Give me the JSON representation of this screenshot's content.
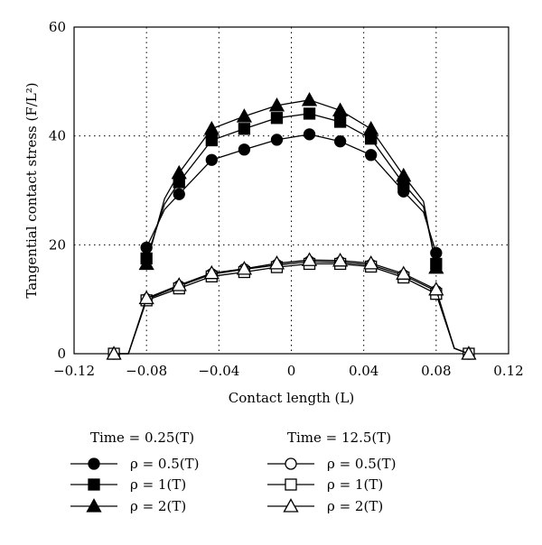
{
  "chart_data": {
    "type": "line",
    "xlabel": "Contact length (L)",
    "ylabel": "Tangential contact stress (F/L²)",
    "xlim": [
      -0.12,
      0.12
    ],
    "ylim": [
      0,
      60
    ],
    "xticks": [
      -0.12,
      -0.08,
      -0.04,
      0,
      0.04,
      0.08,
      0.12
    ],
    "xtick_labels": [
      "−0.12",
      "−0.08",
      "−0.04",
      "0",
      "0.04",
      "0.08",
      "0.12"
    ],
    "yticks": [
      0,
      20,
      40,
      60
    ],
    "ytick_labels": [
      "0",
      "20",
      "40",
      "60"
    ],
    "grid": "dotted",
    "legend_groups": [
      {
        "title": "Time = 0.25(T)",
        "entries": [
          "ρ = 0.5(T)",
          "ρ = 1(T)",
          "ρ = 2(T)"
        ]
      },
      {
        "title": "Time = 12.5(T)",
        "entries": [
          "ρ = 0.5(T)",
          "ρ = 1(T)",
          "ρ = 2(T)"
        ]
      }
    ],
    "series": [
      {
        "group": "Time = 0.25(T)",
        "label": "ρ = 0.5(T)",
        "marker": "circle",
        "filled": true,
        "x": [
          -0.08,
          -0.07,
          -0.062,
          -0.044,
          -0.026,
          -0.008,
          0.01,
          0.027,
          0.044,
          0.062,
          0.073,
          0.08
        ],
        "y": [
          19.5,
          26.5,
          29.3,
          35.6,
          37.5,
          39.3,
          40.3,
          39.0,
          36.5,
          29.8,
          26,
          18.5
        ],
        "mx": [
          -0.08,
          -0.062,
          -0.044,
          -0.026,
          -0.008,
          0.01,
          0.027,
          0.044,
          0.062,
          0.08
        ],
        "my": [
          19.5,
          29.3,
          35.6,
          37.5,
          39.3,
          40.3,
          39.0,
          36.5,
          29.8,
          18.5
        ]
      },
      {
        "group": "Time = 0.25(T)",
        "label": "ρ = 1(T)",
        "marker": "square",
        "filled": true,
        "x": [
          -0.08,
          -0.07,
          -0.062,
          -0.044,
          -0.026,
          -0.008,
          0.01,
          0.027,
          0.044,
          0.062,
          0.073,
          0.08
        ],
        "y": [
          17.5,
          27.5,
          31.5,
          39.2,
          41.3,
          43.3,
          44.1,
          42.6,
          39.5,
          31.2,
          27,
          16.5
        ],
        "mx": [
          -0.08,
          -0.062,
          -0.044,
          -0.026,
          -0.008,
          0.01,
          0.027,
          0.044,
          0.062,
          0.08
        ],
        "my": [
          17.5,
          31.5,
          39.2,
          41.3,
          43.3,
          44.1,
          42.6,
          39.5,
          31.2,
          16.5
        ]
      },
      {
        "group": "Time = 0.25(T)",
        "label": "ρ = 2(T)",
        "marker": "triangle",
        "filled": true,
        "x": [
          -0.08,
          -0.07,
          -0.062,
          -0.044,
          -0.026,
          -0.008,
          0.01,
          0.027,
          0.044,
          0.062,
          0.073,
          0.08
        ],
        "y": [
          16.5,
          28.5,
          33.2,
          41.3,
          43.6,
          45.6,
          46.6,
          44.7,
          41.3,
          32.7,
          28,
          15.8
        ],
        "mx": [
          -0.08,
          -0.062,
          -0.044,
          -0.026,
          -0.008,
          0.01,
          0.027,
          0.044,
          0.062,
          0.08
        ],
        "my": [
          16.5,
          33.2,
          41.3,
          43.6,
          45.6,
          46.6,
          44.7,
          41.3,
          32.7,
          15.8
        ]
      },
      {
        "group": "Time = 12.5(T)",
        "label": "ρ = 0.5(T)",
        "marker": "circle",
        "filled": false,
        "x": [
          -0.098,
          -0.09,
          -0.08,
          -0.062,
          -0.044,
          -0.026,
          -0.008,
          0.01,
          0.027,
          0.044,
          0.062,
          0.08,
          0.09,
          0.098
        ],
        "y": [
          0,
          0,
          10,
          12.4,
          14.6,
          15.5,
          16.3,
          16.9,
          16.8,
          16.3,
          14.4,
          11.5,
          1,
          0
        ],
        "mx": [
          -0.098,
          -0.08,
          -0.062,
          -0.044,
          -0.026,
          -0.008,
          0.01,
          0.027,
          0.044,
          0.062,
          0.08,
          0.098
        ],
        "my": [
          0,
          10,
          12.4,
          14.6,
          15.5,
          16.3,
          16.9,
          16.8,
          16.3,
          14.4,
          11.5,
          0
        ]
      },
      {
        "group": "Time = 12.5(T)",
        "label": "ρ = 1(T)",
        "marker": "square",
        "filled": false,
        "x": [
          -0.098,
          -0.09,
          -0.08,
          -0.062,
          -0.044,
          -0.026,
          -0.008,
          0.01,
          0.027,
          0.044,
          0.062,
          0.08,
          0.09,
          0.098
        ],
        "y": [
          0,
          0,
          9.8,
          12.0,
          14.2,
          15.0,
          15.9,
          16.5,
          16.5,
          16.0,
          14.0,
          11.0,
          1,
          0
        ],
        "mx": [
          -0.098,
          -0.08,
          -0.062,
          -0.044,
          -0.026,
          -0.008,
          0.01,
          0.027,
          0.044,
          0.062,
          0.08,
          0.098
        ],
        "my": [
          0,
          9.8,
          12.0,
          14.2,
          15.0,
          15.9,
          16.5,
          16.5,
          16.0,
          14.0,
          11.0,
          0
        ]
      },
      {
        "group": "Time = 12.5(T)",
        "label": "ρ = 2(T)",
        "marker": "triangle",
        "filled": false,
        "x": [
          -0.098,
          -0.09,
          -0.08,
          -0.062,
          -0.044,
          -0.026,
          -0.008,
          0.01,
          0.027,
          0.044,
          0.062,
          0.08,
          0.09,
          0.098
        ],
        "y": [
          0,
          0,
          10.2,
          12.6,
          14.8,
          15.6,
          16.6,
          17.2,
          17.1,
          16.6,
          14.7,
          11.8,
          1,
          0
        ],
        "mx": [
          -0.098,
          -0.08,
          -0.062,
          -0.044,
          -0.026,
          -0.008,
          0.01,
          0.027,
          0.044,
          0.062,
          0.08,
          0.098
        ],
        "my": [
          0,
          10.2,
          12.6,
          14.8,
          15.6,
          16.6,
          17.2,
          17.1,
          16.6,
          14.7,
          11.8,
          0
        ]
      }
    ]
  }
}
